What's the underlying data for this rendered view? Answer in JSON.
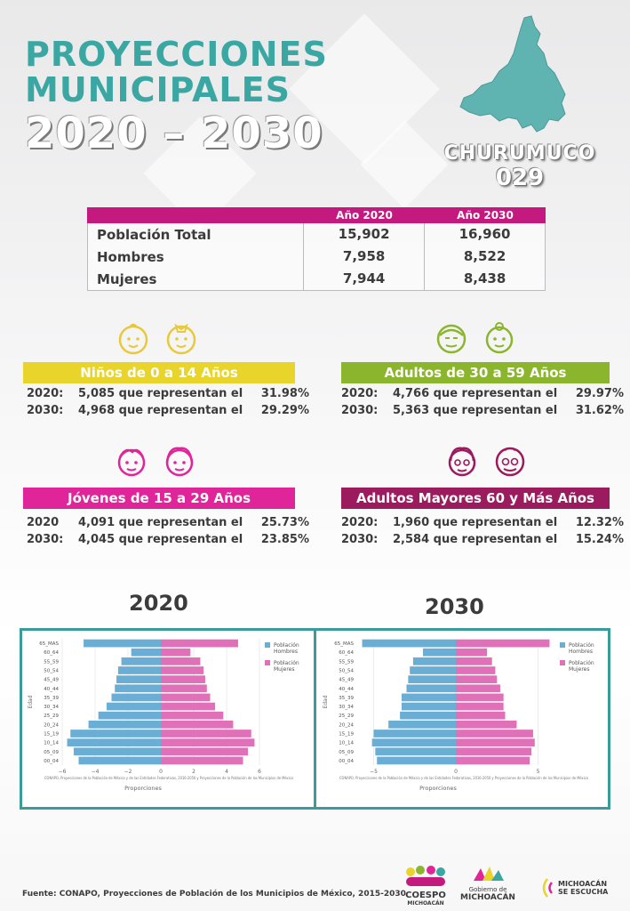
{
  "header": {
    "line1": "PROYECCIONES",
    "line2": "MUNICIPALES",
    "line3": "2020 – 2030"
  },
  "municipality": {
    "name": "CHURUMUCO",
    "code": "029"
  },
  "summary": {
    "headers": [
      "",
      "Año 2020",
      "Año 2030"
    ],
    "rows": [
      {
        "label": "Población Total",
        "v2020": "15,902",
        "v2030": "16,960"
      },
      {
        "label": "Hombres",
        "v2020": "7,958",
        "v2030": "8,522"
      },
      {
        "label": "Mujeres",
        "v2020": "7,944",
        "v2030": "8,438"
      }
    ]
  },
  "groups": {
    "ninos": {
      "title": "Niños de 0 a 14 Años",
      "color": "#e8d42a",
      "icon_color": "#e8c93a",
      "lines": [
        {
          "year": "2020:",
          "desc": "5,085 que representan el",
          "pct": "31.98%"
        },
        {
          "year": "2030:",
          "desc": "4,968 que representan el",
          "pct": "29.29%"
        }
      ]
    },
    "adultos": {
      "title": "Adultos de 30 a 59 Años",
      "color": "#8cb52e",
      "icon_color": "#8cb52e",
      "lines": [
        {
          "year": "2020:",
          "desc": "4,766 que representan el",
          "pct": "29.97%"
        },
        {
          "year": "2030:",
          "desc": "5,363 que representan el",
          "pct": "31.62%"
        }
      ]
    },
    "jovenes": {
      "title": "Jóvenes de 15 a 29 Años",
      "color": "#e0249a",
      "icon_color": "#e0249a",
      "lines": [
        {
          "year": "2020",
          "desc": "4,091 que representan el",
          "pct": "25.73%"
        },
        {
          "year": "2030:",
          "desc": "4,045 que representan el",
          "pct": "23.85%"
        }
      ]
    },
    "mayores": {
      "title": "Adultos Mayores  60 y Más Años",
      "color": "#9c1a5e",
      "icon_color": "#9c1a5e",
      "lines": [
        {
          "year": "2020:",
          "desc": "1,960 que representan el",
          "pct": "12.32%"
        },
        {
          "year": "2030:",
          "desc": "2,584 que representan el",
          "pct": "15.24%"
        }
      ]
    }
  },
  "chart_data": [
    {
      "type": "bar",
      "title": "2020",
      "orientation": "horizontal-pyramid",
      "categories": [
        "00_04",
        "05_09",
        "10_14",
        "15_19",
        "20_24",
        "25_29",
        "30_34",
        "35_39",
        "40_44",
        "45_49",
        "50_54",
        "55_59",
        "60_64",
        "65_MAS"
      ],
      "series": [
        {
          "name": "Población Hombres",
          "color": "#6aaed6",
          "values": [
            -5.0,
            -5.3,
            -5.7,
            -5.5,
            -4.4,
            -3.8,
            -3.3,
            -3.0,
            -2.8,
            -2.7,
            -2.6,
            -2.4,
            -1.8,
            -4.7
          ]
        },
        {
          "name": "Población Mujeres",
          "color": "#e070b8",
          "values": [
            5.0,
            5.3,
            5.7,
            5.5,
            4.4,
            3.8,
            3.3,
            3.0,
            2.8,
            2.7,
            2.6,
            2.4,
            1.8,
            4.7
          ]
        }
      ],
      "xlabel": "Proporciones",
      "ylabel": "Edad",
      "xlim": [
        -6,
        6
      ],
      "xticks": [
        -6,
        -4,
        -2,
        0,
        2,
        4,
        6
      ],
      "note": "CONAPO, Proyecciones de la Población de México y de las Entidades Federativas, 2016-2050 y Proyecciones de la Población de los Municipios de México"
    },
    {
      "type": "bar",
      "title": "2030",
      "orientation": "horizontal-pyramid",
      "categories": [
        "00_04",
        "05_09",
        "10_14",
        "15_19",
        "20_24",
        "25_29",
        "30_34",
        "35_39",
        "40_44",
        "45_49",
        "50_54",
        "55_59",
        "60_64",
        "65_MAS"
      ],
      "series": [
        {
          "name": "Población Hombres",
          "color": "#6aaed6",
          "values": [
            -4.8,
            -4.9,
            -5.1,
            -5.0,
            -4.1,
            -3.4,
            -3.3,
            -3.3,
            -3.0,
            -2.9,
            -2.8,
            -2.6,
            -2.0,
            -5.7
          ]
        },
        {
          "name": "Población Mujeres",
          "color": "#e070b8",
          "values": [
            4.5,
            4.6,
            4.8,
            4.7,
            3.7,
            3.0,
            2.9,
            2.9,
            2.7,
            2.5,
            2.4,
            2.2,
            1.9,
            5.7
          ]
        }
      ],
      "xlabel": "Proporciones",
      "ylabel": "Edad",
      "xlim": [
        -6,
        6
      ],
      "xticks": [
        -5,
        0,
        5
      ],
      "note": "CONAPO, Proyecciones de la Población de México y de las Entidades Federativas, 2016-2050 y Proyecciones de la Población de los Municipios de México"
    }
  ],
  "footer": {
    "source": "Fuente: CONAPO, Proyecciones de Población de los Municipios de México, 2015-2030",
    "logo1": "COESPO",
    "logo1_sub": "MICHOACÁN",
    "logo2_top": "Gobierno de",
    "logo2": "MICHOACÁN",
    "logo3_top": "MICHOACÁN",
    "logo3": "SE ESCUCHA"
  }
}
